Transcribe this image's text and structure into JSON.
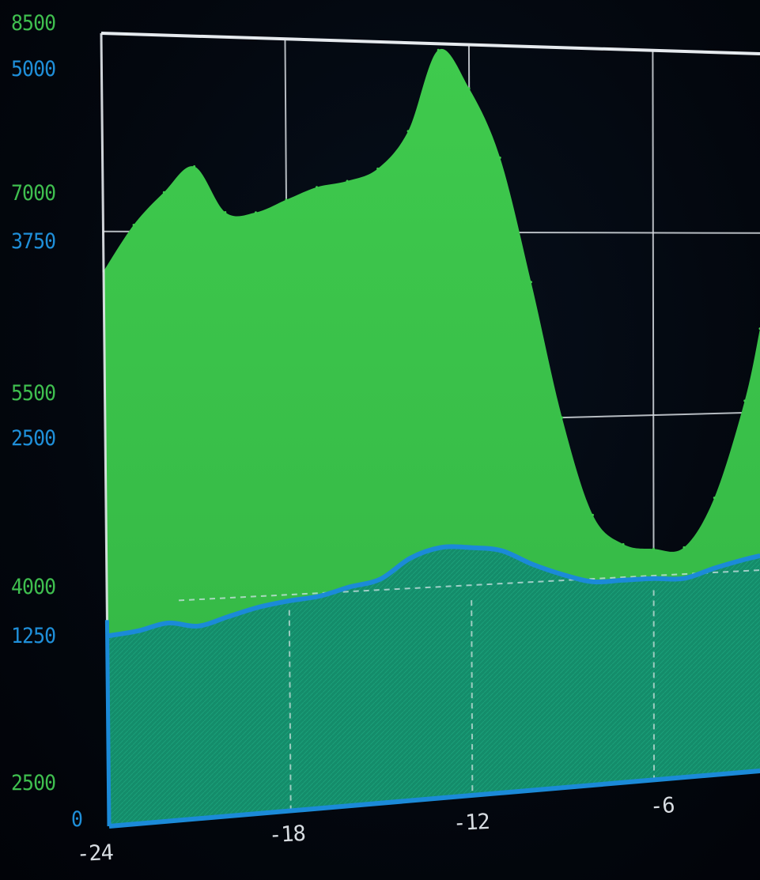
{
  "chart_data": {
    "type": "area",
    "x": [
      -24,
      -23,
      -22,
      -21,
      -20,
      -19,
      -18,
      -17,
      -16,
      -15,
      -14,
      -13,
      -12,
      -11,
      -10,
      -9,
      -8,
      -7,
      -6,
      -5,
      -4,
      -3,
      -2.5
    ],
    "series": [
      {
        "axis": "left-green",
        "values": [
          6700,
          7050,
          7300,
          7500,
          7150,
          7150,
          7250,
          7350,
          7400,
          7500,
          7800,
          8450,
          8150,
          7600,
          6600,
          5500,
          4700,
          4450,
          4400,
          4400,
          4800,
          5600,
          6200
        ]
      },
      {
        "axis": "left-blue",
        "values": [
          1200,
          1220,
          1260,
          1230,
          1280,
          1330,
          1360,
          1380,
          1430,
          1470,
          1600,
          1660,
          1650,
          1620,
          1520,
          1440,
          1380,
          1380,
          1380,
          1370,
          1430,
          1480,
          1500
        ]
      }
    ],
    "y_left_green": {
      "ticks": [
        "8500",
        "7000",
        "5500",
        "4000",
        "2500"
      ],
      "range": [
        2500,
        8500
      ]
    },
    "y_left_blue": {
      "ticks": [
        "5000",
        "3750",
        "2500",
        "1250",
        "0"
      ],
      "range": [
        0,
        5000
      ]
    },
    "x_axis": {
      "ticks": [
        "-24",
        "-18",
        "-12",
        "-6"
      ],
      "range": [
        -24,
        -2.5
      ]
    },
    "grid": true,
    "dashed_reference_blue": 1400
  },
  "colors": {
    "background": "#02060d",
    "green_fill": "#3cc24a",
    "green_fill_dark": "#2aa33f",
    "blue_line": "#1b8ad8",
    "blue_fill": "#0f8a70",
    "grid": "#d6dbe0",
    "frame": "#e6eaee"
  }
}
